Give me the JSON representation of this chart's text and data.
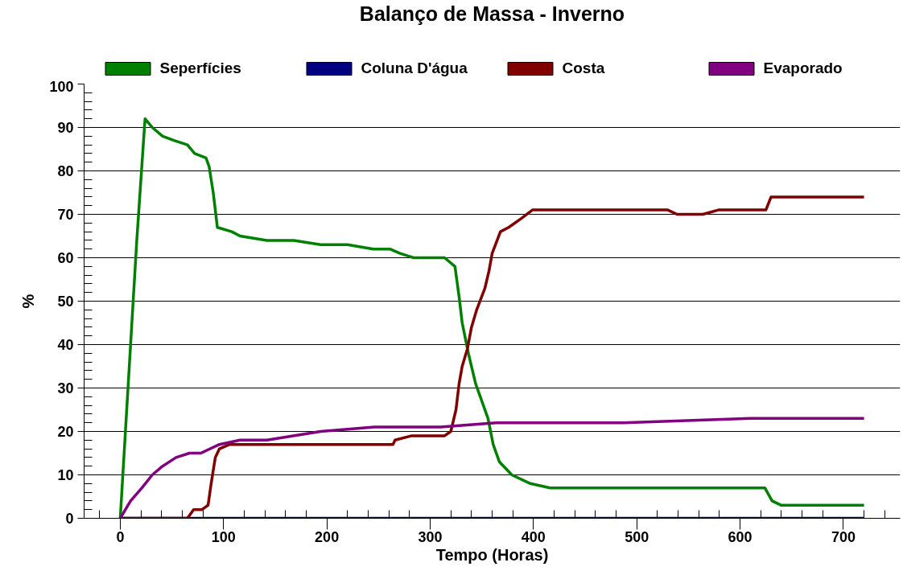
{
  "chart_data": {
    "type": "line",
    "title": "Balanço de Massa - Inverno",
    "xlabel": "Tempo (Horas)",
    "ylabel": "%",
    "xlim": [
      -35,
      755
    ],
    "ylim": [
      0,
      100
    ],
    "xticks": [
      {
        "value": -20,
        "label": null
      },
      0,
      {
        "value": 20,
        "label": null
      },
      {
        "value": 40,
        "label": null
      },
      {
        "value": 60,
        "label": null
      },
      {
        "value": 80,
        "label": null
      },
      100,
      {
        "value": 120,
        "label": null
      },
      {
        "value": 140,
        "label": null
      },
      {
        "value": 160,
        "label": null
      },
      {
        "value": 180,
        "label": null
      },
      200,
      {
        "value": 220,
        "label": null
      },
      {
        "value": 240,
        "label": null
      },
      {
        "value": 260,
        "label": null
      },
      {
        "value": 280,
        "label": null
      },
      300,
      {
        "value": 320,
        "label": null
      },
      {
        "value": 340,
        "label": null
      },
      {
        "value": 360,
        "label": null
      },
      {
        "value": 380,
        "label": null
      },
      400,
      {
        "value": 420,
        "label": null
      },
      {
        "value": 440,
        "label": null
      },
      {
        "value": 460,
        "label": null
      },
      {
        "value": 480,
        "label": null
      },
      500,
      {
        "value": 520,
        "label": null
      },
      {
        "value": 540,
        "label": null
      },
      {
        "value": 560,
        "label": null
      },
      {
        "value": 580,
        "label": null
      },
      600,
      {
        "value": 620,
        "label": null
      },
      {
        "value": 640,
        "label": null
      },
      {
        "value": 660,
        "label": null
      },
      {
        "value": 680,
        "label": null
      },
      700,
      {
        "value": 720,
        "label": null
      },
      {
        "value": 740,
        "label": null
      }
    ],
    "yticks": [
      0,
      {
        "value": 2,
        "label": null
      },
      {
        "value": 4,
        "label": null
      },
      {
        "value": 6,
        "label": null
      },
      {
        "value": 8,
        "label": null
      },
      10,
      {
        "value": 12,
        "label": null
      },
      {
        "value": 14,
        "label": null
      },
      {
        "value": 16,
        "label": null
      },
      {
        "value": 18,
        "label": null
      },
      20,
      {
        "value": 22,
        "label": null
      },
      {
        "value": 24,
        "label": null
      },
      {
        "value": 26,
        "label": null
      },
      {
        "value": 28,
        "label": null
      },
      30,
      {
        "value": 32,
        "label": null
      },
      {
        "value": 34,
        "label": null
      },
      {
        "value": 36,
        "label": null
      },
      {
        "value": 38,
        "label": null
      },
      40,
      {
        "value": 42,
        "label": null
      },
      {
        "value": 44,
        "label": null
      },
      {
        "value": 46,
        "label": null
      },
      {
        "value": 48,
        "label": null
      },
      50,
      {
        "value": 52,
        "label": null
      },
      {
        "value": 54,
        "label": null
      },
      {
        "value": 56,
        "label": null
      },
      {
        "value": 58,
        "label": null
      },
      60,
      {
        "value": 62,
        "label": null
      },
      {
        "value": 64,
        "label": null
      },
      {
        "value": 66,
        "label": null
      },
      {
        "value": 68,
        "label": null
      },
      70,
      {
        "value": 72,
        "label": null
      },
      {
        "value": 74,
        "label": null
      },
      {
        "value": 76,
        "label": null
      },
      {
        "value": 78,
        "label": null
      },
      80,
      {
        "value": 82,
        "label": null
      },
      {
        "value": 84,
        "label": null
      },
      {
        "value": 86,
        "label": null
      },
      {
        "value": 88,
        "label": null
      },
      90,
      {
        "value": 92,
        "label": null
      },
      {
        "value": 94,
        "label": null
      },
      {
        "value": 96,
        "label": null
      },
      {
        "value": 98,
        "label": null
      },
      100
    ],
    "grid": "y",
    "legend": "top",
    "marker": "none",
    "line_style": "solid",
    "series": [
      {
        "name": "Seperfícies",
        "color": "#008000",
        "x": [
          0,
          8,
          16,
          24,
          31,
          41,
          52,
          65,
          72,
          83,
          86,
          90,
          94,
          108,
          116,
          142,
          168,
          194,
          220,
          245,
          261,
          271,
          284,
          314,
          324,
          328,
          331,
          337,
          344,
          356,
          361,
          367,
          379,
          397,
          416,
          548,
          579,
          624,
          631,
          640,
          714,
          720
        ],
        "values": [
          0,
          32,
          64,
          92,
          90,
          88,
          87,
          86,
          84,
          83,
          81,
          75,
          67,
          66,
          65,
          64,
          64,
          63,
          63,
          62,
          62,
          61,
          60,
          60,
          58,
          51,
          45,
          38,
          31,
          23,
          17,
          13,
          10,
          8,
          7,
          7,
          7,
          7,
          4,
          3,
          3,
          3
        ]
      },
      {
        "name": "Coluna D'água",
        "color": "#000080",
        "x": [
          0,
          720
        ],
        "values": [
          0,
          0
        ]
      },
      {
        "name": "Costa",
        "color": "#800000",
        "x": [
          0,
          65,
          71,
          79,
          85,
          88,
          92,
          96,
          106,
          116,
          160,
          163,
          264,
          266,
          282,
          295,
          302,
          314,
          320,
          325,
          328,
          331,
          336,
          340,
          345,
          353,
          357,
          360,
          368,
          376,
          388,
          399,
          530,
          539,
          564,
          579,
          625,
          630,
          634,
          714,
          720
        ],
        "values": [
          0,
          0,
          2,
          2,
          3,
          8,
          14,
          16,
          17,
          17,
          17,
          17,
          17,
          18,
          19,
          19,
          19,
          19,
          20,
          25,
          31,
          35,
          39,
          44,
          48,
          53,
          57,
          61,
          66,
          67,
          69,
          71,
          71,
          70,
          70,
          71,
          71,
          74,
          74,
          74,
          74
        ]
      },
      {
        "name": "Evaporado",
        "color": "#800080",
        "x": [
          0,
          10,
          21,
          31,
          41,
          54,
          67,
          78,
          96,
          116,
          142,
          194,
          246,
          284,
          310,
          364,
          487,
          610,
          720
        ],
        "values": [
          0,
          4,
          7,
          10,
          12,
          14,
          15,
          15,
          17,
          18,
          18,
          20,
          21,
          21,
          21,
          22,
          22,
          23,
          23
        ]
      }
    ]
  }
}
